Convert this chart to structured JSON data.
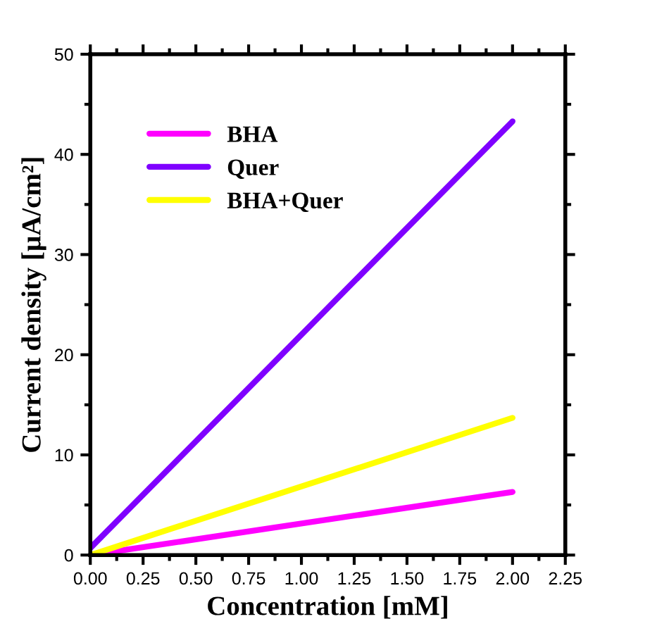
{
  "chart_data": {
    "type": "line",
    "xlabel": "Concentration [mM]",
    "ylabel": "Current density [µA/cm²]",
    "x": [
      0,
      2
    ],
    "series": [
      {
        "name": "BHA",
        "color": "#ff00ff",
        "values": [
          0,
          6.3
        ]
      },
      {
        "name": "Quer",
        "color": "#7f00ff",
        "values": [
          0.7,
          43.3
        ]
      },
      {
        "name": "BHA+Quer",
        "color": "#ffff00",
        "values": [
          0,
          13.7
        ]
      }
    ],
    "xlim": [
      0,
      2.25
    ],
    "xticks": [
      {
        "value": 0,
        "label": "0.00"
      },
      0.25,
      {
        "value": 0.5,
        "label": "0.50"
      },
      0.75,
      {
        "value": 1,
        "label": "1.00"
      },
      1.25,
      {
        "value": 1.5,
        "label": "1.50"
      },
      1.75,
      {
        "value": 2,
        "label": "2.00"
      },
      2.25
    ],
    "ylim": [
      0,
      50
    ],
    "yticks": [
      0,
      10,
      20,
      30,
      40,
      50
    ],
    "grid": false,
    "legend": "top left",
    "marker": "none",
    "line_style": "solid"
  }
}
